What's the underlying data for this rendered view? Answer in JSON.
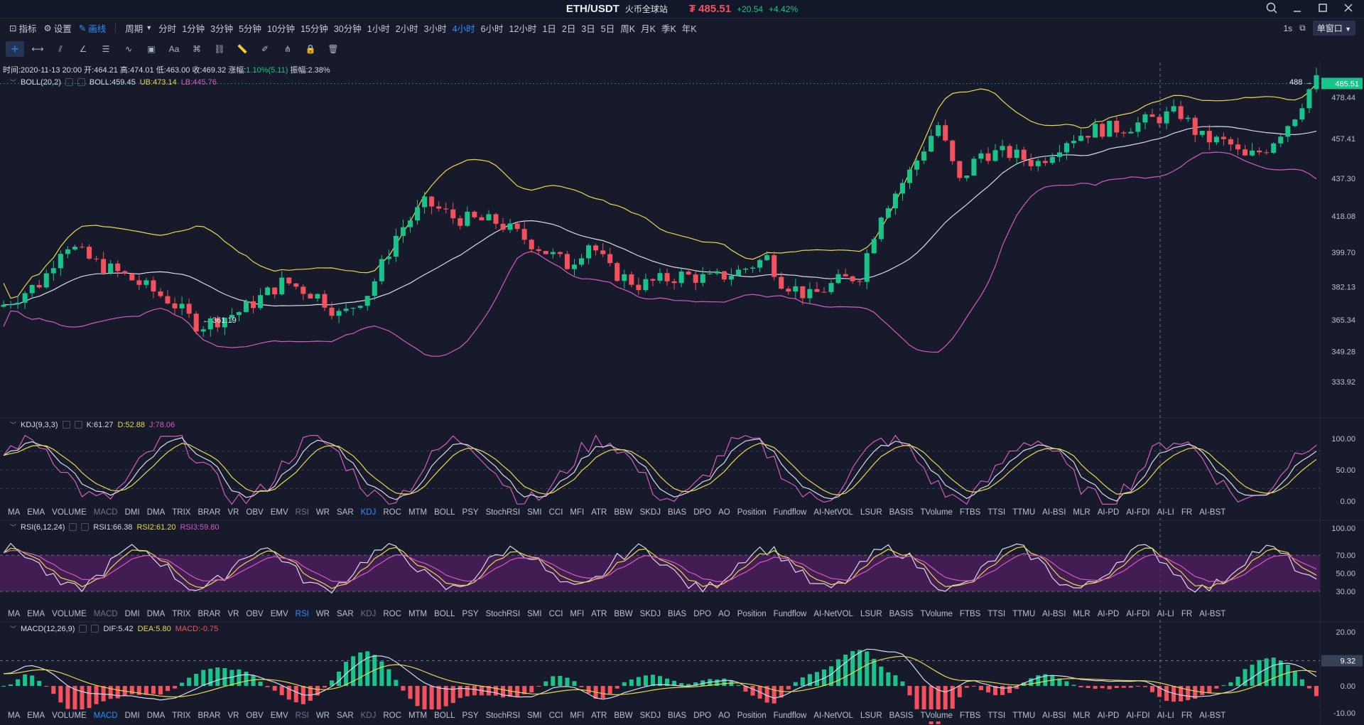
{
  "titlebar": {
    "symbol": "ETH/USDT",
    "exchange": "火币全球站",
    "price": "₮ 485.51",
    "change": "+20.54",
    "change_pct": "+4.42%"
  },
  "toolbar": {
    "indicators": "指标",
    "settings": "设置",
    "drawing": "画线",
    "period": "周期",
    "intervals": [
      "分时",
      "1分钟",
      "3分钟",
      "5分钟",
      "10分钟",
      "15分钟",
      "30分钟",
      "1小时",
      "2小时",
      "3小时",
      "4小时",
      "6小时",
      "12小时",
      "1日",
      "2日",
      "3日",
      "5日",
      "周K",
      "月K",
      "季K",
      "年K"
    ],
    "active_interval": "4小时",
    "refresh": "1s",
    "layout": "单窗口"
  },
  "ohlc": {
    "time": "时间:2020-11-13 20:00",
    "open": "开:464.21",
    "high": "高:474.01",
    "low": "低:463.00",
    "close": "收:469.32",
    "change_label": "涨幅:",
    "change_value": "1.10%(5.11)",
    "amp": "振幅:2.38%"
  },
  "boll": {
    "name": "BOLL(20,2)",
    "mid": "BOLL:459.45",
    "ub": "UB:473.14",
    "lb": "LB:445.76",
    "ticks": [
      "478.44",
      "457.41",
      "437.30",
      "418.08",
      "399.70",
      "382.13",
      "365.34",
      "349.28",
      "333.92"
    ],
    "last_price": "485.51",
    "high_label": "488",
    "low_label": "361.19"
  },
  "kdj": {
    "name": "KDJ(9,3,3)",
    "k": "K:61.27",
    "d": "D:52.88",
    "j": "J:78.06",
    "ticks": [
      "100.00",
      "50.00",
      "0.00"
    ]
  },
  "rsi": {
    "name": "RSI(6,12,24)",
    "r1": "RSI1:66.38",
    "r2": "RSI2:61.20",
    "r3": "RSI3:59.80",
    "ticks": [
      "100.00",
      "70.00",
      "50.00",
      "30.00"
    ]
  },
  "macd": {
    "name": "MACD(12,26,9)",
    "dif": "DIF:5.42",
    "dea": "DEA:5.80",
    "macd": "MACD:-0.75",
    "ticks": [
      "20.00",
      "0.00",
      "-10.00"
    ],
    "crosshair": "9.32"
  },
  "indicator_tabs": [
    "MA",
    "EMA",
    "VOLUME",
    "MACD",
    "DMI",
    "DMA",
    "TRIX",
    "BRAR",
    "VR",
    "OBV",
    "EMV",
    "RSI",
    "WR",
    "SAR",
    "KDJ",
    "ROC",
    "MTM",
    "BOLL",
    "PSY",
    "StochRSI",
    "SMI",
    "CCI",
    "MFI",
    "ATR",
    "BBW",
    "SKDJ",
    "BIAS",
    "DPO",
    "AO",
    "Position",
    "Fundflow",
    "AI-NetVOL",
    "LSUR",
    "BASIS",
    "TVolume",
    "FTBS",
    "TTSI",
    "TTMU",
    "AI-BSI",
    "MLR",
    "AI-PD",
    "AI-FDI",
    "AI-LI",
    "FR",
    "AI-BST"
  ],
  "colors": {
    "up": "#19c48b",
    "down": "#f4505d",
    "boll_mid": "#d7dbe5",
    "boll_ub": "#e9d84a",
    "boll_lb": "#d65ac2",
    "active": "#2f8cff"
  }
}
